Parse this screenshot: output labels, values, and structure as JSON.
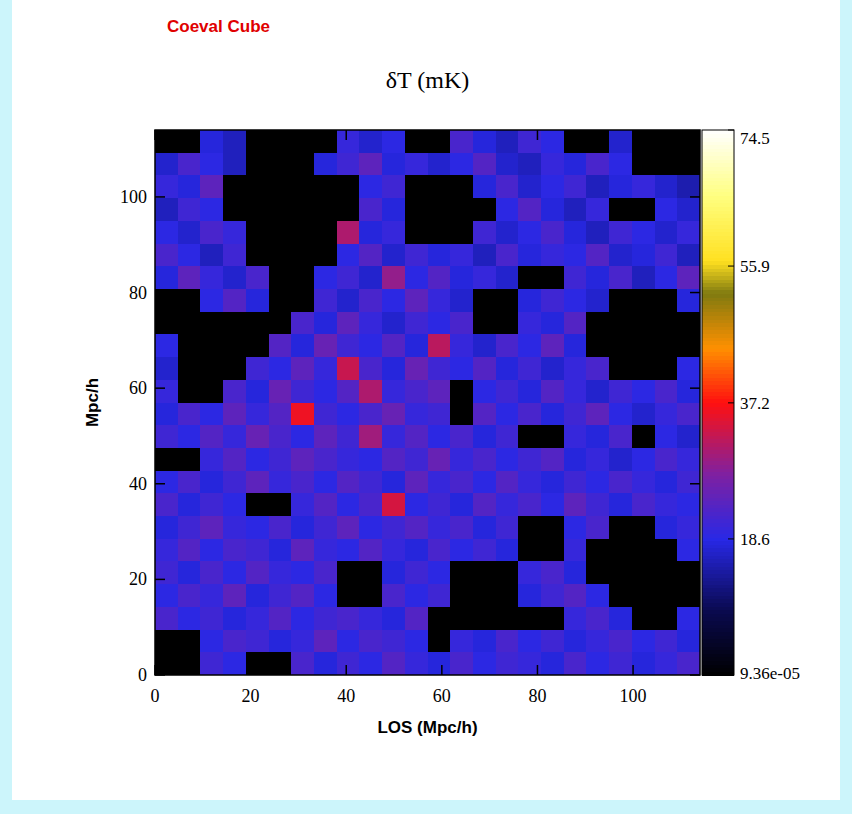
{
  "chart_data": {
    "type": "heatmap",
    "subtitle": "Coeval Cube",
    "title": "δT (mK)",
    "x_label": "LOS (Mpc/h)",
    "y_label": "Mpc/h",
    "xlim": [
      0,
      114
    ],
    "ylim": [
      0,
      114
    ],
    "xticks": [
      0,
      20,
      40,
      60,
      80,
      100
    ],
    "yticks": [
      0,
      20,
      40,
      60,
      80,
      100
    ],
    "cells": [
      [
        0,
        0,
        18,
        16,
        0,
        0,
        0,
        0,
        20,
        17,
        19,
        0,
        0,
        22,
        18,
        16,
        21,
        19,
        0,
        0,
        17,
        0,
        0,
        0
      ],
      [
        17,
        22,
        19,
        16,
        0,
        0,
        0,
        18,
        21,
        24,
        18,
        20,
        17,
        19,
        23,
        17,
        16,
        20,
        18,
        22,
        19,
        0,
        0,
        0
      ],
      [
        20,
        18,
        24,
        0,
        0,
        0,
        0,
        0,
        0,
        19,
        21,
        0,
        0,
        0,
        18,
        22,
        17,
        19,
        21,
        16,
        18,
        20,
        17,
        15
      ],
      [
        16,
        21,
        19,
        0,
        0,
        0,
        0,
        0,
        0,
        22,
        18,
        0,
        0,
        0,
        0,
        19,
        23,
        18,
        16,
        20,
        0,
        0,
        19,
        17
      ],
      [
        19,
        17,
        22,
        20,
        0,
        0,
        0,
        0,
        31,
        18,
        20,
        0,
        0,
        0,
        21,
        17,
        19,
        22,
        18,
        16,
        21,
        19,
        17,
        20
      ],
      [
        22,
        19,
        16,
        21,
        0,
        0,
        0,
        0,
        19,
        23,
        17,
        21,
        18,
        20,
        16,
        22,
        18,
        20,
        19,
        23,
        17,
        18,
        21,
        16
      ],
      [
        18,
        24,
        20,
        17,
        22,
        0,
        0,
        19,
        21,
        17,
        29,
        19,
        23,
        18,
        20,
        17,
        0,
        0,
        21,
        18,
        22,
        16,
        19,
        24
      ],
      [
        0,
        0,
        19,
        23,
        18,
        0,
        0,
        21,
        17,
        22,
        19,
        24,
        20,
        17,
        0,
        0,
        18,
        21,
        19,
        17,
        0,
        0,
        0,
        18
      ],
      [
        0,
        0,
        0,
        0,
        0,
        0,
        22,
        18,
        24,
        20,
        17,
        21,
        19,
        22,
        0,
        0,
        20,
        18,
        23,
        0,
        0,
        0,
        0,
        0
      ],
      [
        19,
        0,
        0,
        0,
        0,
        23,
        18,
        25,
        21,
        19,
        23,
        18,
        32,
        20,
        17,
        22,
        19,
        24,
        18,
        0,
        0,
        0,
        0,
        0
      ],
      [
        17,
        0,
        0,
        0,
        21,
        19,
        24,
        20,
        33,
        22,
        18,
        25,
        21,
        19,
        23,
        18,
        21,
        17,
        20,
        22,
        0,
        0,
        0,
        19
      ],
      [
        20,
        0,
        0,
        22,
        18,
        25,
        21,
        19,
        23,
        31,
        20,
        22,
        24,
        0,
        19,
        21,
        18,
        23,
        20,
        17,
        21,
        19,
        22,
        18
      ],
      [
        18,
        22,
        19,
        24,
        20,
        23,
        36,
        21,
        19,
        22,
        25,
        20,
        21,
        0,
        23,
        19,
        22,
        18,
        21,
        24,
        19,
        17,
        20,
        22
      ],
      [
        21,
        19,
        23,
        20,
        25,
        22,
        19,
        24,
        21,
        30,
        20,
        23,
        19,
        22,
        18,
        21,
        0,
        0,
        20,
        18,
        22,
        0,
        19,
        17
      ],
      [
        0,
        0,
        20,
        23,
        19,
        21,
        24,
        22,
        20,
        19,
        23,
        21,
        25,
        20,
        22,
        19,
        21,
        23,
        18,
        20,
        17,
        19,
        22,
        20
      ],
      [
        19,
        22,
        18,
        21,
        24,
        20,
        22,
        19,
        23,
        21,
        18,
        24,
        20,
        22,
        19,
        23,
        20,
        18,
        21,
        19,
        22,
        20,
        18,
        21
      ],
      [
        22,
        18,
        21,
        19,
        0,
        0,
        20,
        23,
        19,
        22,
        34,
        19,
        21,
        18,
        23,
        20,
        22,
        19,
        24,
        21,
        18,
        22,
        20,
        19
      ],
      [
        18,
        21,
        24,
        20,
        19,
        22,
        18,
        21,
        24,
        19,
        21,
        23,
        20,
        22,
        18,
        21,
        0,
        0,
        19,
        22,
        0,
        0,
        18,
        20
      ],
      [
        20,
        23,
        19,
        22,
        21,
        18,
        24,
        20,
        19,
        23,
        20,
        18,
        22,
        19,
        21,
        18,
        0,
        0,
        20,
        0,
        0,
        0,
        0,
        19
      ],
      [
        21,
        18,
        22,
        19,
        23,
        20,
        19,
        22,
        0,
        0,
        18,
        21,
        19,
        0,
        0,
        0,
        20,
        22,
        18,
        0,
        0,
        0,
        0,
        0
      ],
      [
        19,
        22,
        20,
        24,
        18,
        21,
        23,
        19,
        0,
        0,
        22,
        19,
        21,
        0,
        0,
        0,
        18,
        21,
        23,
        19,
        0,
        0,
        0,
        0
      ],
      [
        22,
        19,
        21,
        18,
        20,
        23,
        19,
        21,
        22,
        20,
        18,
        23,
        0,
        0,
        0,
        0,
        0,
        0,
        20,
        22,
        18,
        0,
        0,
        19
      ],
      [
        0,
        0,
        19,
        22,
        21,
        18,
        20,
        24,
        19,
        22,
        21,
        19,
        0,
        20,
        18,
        22,
        19,
        21,
        18,
        20,
        22,
        19,
        21,
        18
      ],
      [
        0,
        0,
        21,
        19,
        0,
        0,
        22,
        18,
        21,
        19,
        23,
        20,
        18,
        22,
        19,
        21,
        20,
        18,
        22,
        19,
        21,
        18,
        20,
        22
      ]
    ],
    "colorbar_range": [
      9.36e-05,
      74.5
    ],
    "colorbar_ticks": [
      {
        "value": 9.36e-05,
        "label": "9.36e-05"
      },
      18.6,
      37.2,
      55.9,
      74.5
    ]
  }
}
